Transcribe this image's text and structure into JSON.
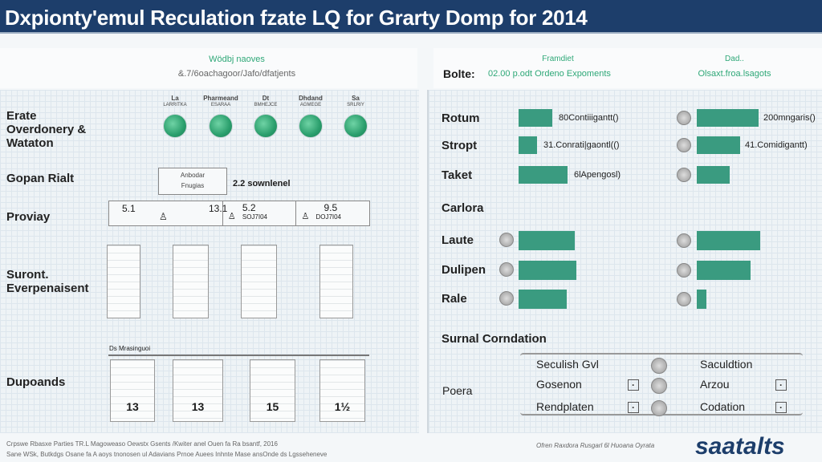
{
  "title": "Dxpionty'emul Reculation fzate LQ for Grarty Domp for 2014",
  "left_header": {
    "title": "Wödbj naoves",
    "subtitle": "&.7/6oachagoor/Jafo/dfatjents"
  },
  "right_header": {
    "prefix": "Bolte:",
    "col1_title": "Framdiet",
    "col1_sub": "02.00 p.odt Ordeno Expoments",
    "col2_title": "Dad..",
    "col2_sub": "Olsaxt.froa.lsagots"
  },
  "sections": {
    "erate": "Erate Overdonery & Wataton",
    "gopan": "Gopan Rialt",
    "proviay": "Proviay",
    "suront": "Suront. Everpenaisent",
    "dupoands": "Dupoands"
  },
  "globes": [
    {
      "top": "La",
      "sub": "LARRITKA"
    },
    {
      "top": "Pharmeand",
      "sub": "ESARAA"
    },
    {
      "top": "Dt",
      "sub": "BMHEJCE"
    },
    {
      "top": "Dhdand",
      "sub": "AGMEGE"
    },
    {
      "top": "Sa",
      "sub": "SRLRIY"
    }
  ],
  "gopan_box": {
    "line1": "Anbodar",
    "line2": "Fnugias",
    "value": "2.2 sownlenel"
  },
  "proviay_cells": [
    {
      "a": "5.1",
      "b": "13.1"
    },
    {
      "a": "5.2",
      "b": "SOJ7I04"
    },
    {
      "a": "9.5",
      "b": "DOJ7I04"
    }
  ],
  "dupoands_header": "Ds Mrasinguoi",
  "dupoands_cards": [
    "13",
    "13",
    "15",
    "1½"
  ],
  "bars_left": [
    {
      "label": "Rotum",
      "value": 42,
      "text": "80Contiiigantt()"
    },
    {
      "label": "Stropt",
      "value": 23,
      "text": "31.Conrati|gaontl(()"
    },
    {
      "label": "Taket",
      "value": 61,
      "text": "6lApengosl)"
    }
  ],
  "bars_right": [
    {
      "value": 77,
      "text": "200mngaris()"
    },
    {
      "value": 54,
      "text": "41.Comidigantt)"
    },
    {
      "value": 41,
      "text": ""
    }
  ],
  "carlora": "Carlora",
  "bars2_left": [
    {
      "label": "Laute",
      "value": 70
    },
    {
      "label": "Dulipen",
      "value": 72
    },
    {
      "label": "Rale",
      "value": 60
    }
  ],
  "bars2_right": [
    {
      "value": 79
    },
    {
      "value": 67
    },
    {
      "value": 12
    }
  ],
  "surnal": {
    "title": "Surnal Corndation",
    "row_label": "Poera",
    "left": [
      "Seculish Gvl",
      "Gosenon",
      "Rendplaten"
    ],
    "right": [
      "Saculdtion",
      "Arzou",
      "Codation"
    ]
  },
  "footer": {
    "left1": "Crpswe Rbasxe Parties TR.L Magoweaso Oewstx Gsents /Kwiter anel Ouen fa Ra bsantf, 2016",
    "left2": "Sane WSk, Butkdgs Osane fa A aoys tnonosen ul Adavians Prnoe Auees Inhnte Mase ansOnde ds Lgsseheneve",
    "right": "Ofren Raxdora Rusgarl 6l Huoana Oyrata",
    "logo": "saatalts"
  },
  "colors": {
    "header": "#1d3e6b",
    "bar": "#3a9b80",
    "accent": "#2fa878"
  }
}
